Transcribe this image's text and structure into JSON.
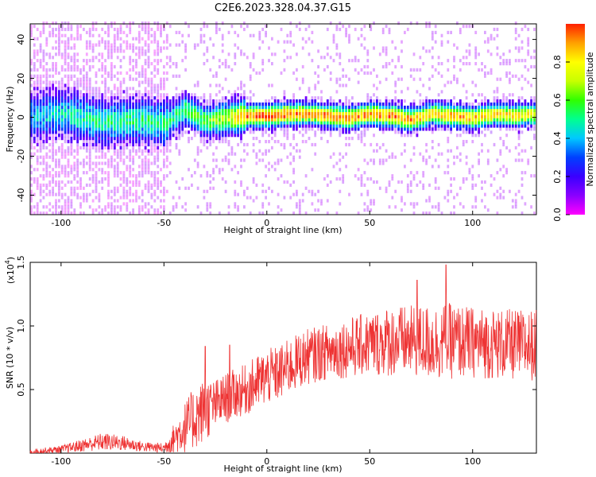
{
  "title": "C2E6.2023.328.04.37.G15",
  "chart_data": [
    {
      "type": "heatmap",
      "xlabel": "Height of straight line (km)",
      "ylabel": "Frequency (Hz)",
      "xlim": [
        -115,
        131
      ],
      "ylim": [
        -50,
        48
      ],
      "xticks": [
        -100,
        -50,
        0,
        50,
        100
      ],
      "yticks": [
        -40,
        -20,
        0,
        20,
        40
      ],
      "colorbar": {
        "label": "Normalized spectral amplitude",
        "range": [
          0,
          1
        ],
        "ticks": [
          0.0,
          0.2,
          0.4,
          0.6,
          0.8
        ],
        "colormap": [
          "#ff00ff",
          "#8a00ff",
          "#3a00ff",
          "#0040ff",
          "#00c8ff",
          "#00ff90",
          "#30ff00",
          "#c8ff00",
          "#ffff00",
          "#ffa000",
          "#ff2000"
        ]
      },
      "ridge": {
        "x": [
          -115,
          -100,
          -80,
          -60,
          -50,
          -40,
          -30,
          -20,
          -10,
          0,
          10,
          20,
          30,
          40,
          50,
          60,
          70,
          80,
          90,
          100,
          110,
          120,
          131
        ],
        "y": [
          0,
          1,
          -3,
          -2,
          -4,
          3,
          -3,
          -1,
          0,
          0,
          1,
          1,
          0,
          -1,
          1,
          0,
          -2,
          1,
          0,
          -1,
          1,
          0,
          1
        ],
        "peak_amplitude": [
          0.4,
          0.45,
          0.5,
          0.5,
          0.5,
          0.55,
          0.6,
          0.7,
          0.95,
          1.0,
          0.95,
          0.9,
          0.95,
          0.9,
          0.9,
          0.95,
          0.9,
          0.85,
          0.9,
          0.85,
          0.85,
          0.8,
          0.8
        ]
      }
    },
    {
      "type": "line",
      "xlabel": "Height of straight line (km)",
      "ylabel": "SNR (10 * v/v)",
      "scale_label": "(x10",
      "scale_exp": "4",
      "xlim": [
        -115,
        131
      ],
      "ylim": [
        0,
        1.5
      ],
      "xticks": [
        -100,
        -50,
        0,
        50,
        100
      ],
      "yticks": [
        0.5,
        1.0,
        1.5
      ],
      "color": "#ee3333",
      "envelope": {
        "x": [
          -115,
          -100,
          -90,
          -80,
          -70,
          -60,
          -50,
          -45,
          -40,
          -35,
          -30,
          -25,
          -20,
          -15,
          -10,
          -5,
          0,
          5,
          10,
          15,
          20,
          25,
          30,
          40,
          50,
          60,
          70,
          80,
          90,
          100,
          110,
          120,
          131
        ],
        "mean": [
          0.01,
          0.03,
          0.06,
          0.09,
          0.08,
          0.05,
          0.04,
          0.12,
          0.2,
          0.28,
          0.34,
          0.38,
          0.43,
          0.47,
          0.5,
          0.55,
          0.6,
          0.62,
          0.67,
          0.72,
          0.76,
          0.78,
          0.8,
          0.83,
          0.86,
          0.88,
          0.88,
          0.87,
          0.88,
          0.87,
          0.86,
          0.85,
          0.85
        ],
        "spread": [
          0.02,
          0.03,
          0.05,
          0.07,
          0.06,
          0.04,
          0.04,
          0.12,
          0.2,
          0.25,
          0.25,
          0.2,
          0.2,
          0.2,
          0.2,
          0.22,
          0.22,
          0.22,
          0.22,
          0.22,
          0.22,
          0.22,
          0.22,
          0.24,
          0.25,
          0.28,
          0.28,
          0.3,
          0.3,
          0.28,
          0.28,
          0.28,
          0.28
        ]
      },
      "peaks": [
        {
          "x": -30,
          "y": 0.84
        },
        {
          "x": -18,
          "y": 0.85
        },
        {
          "x": 73,
          "y": 1.36
        },
        {
          "x": 87,
          "y": 1.48
        }
      ]
    }
  ]
}
